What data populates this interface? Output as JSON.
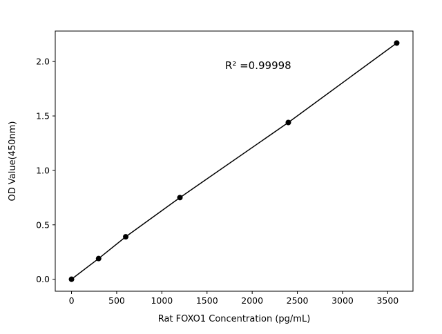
{
  "chart_data": {
    "type": "scatter",
    "x": [
      0,
      300,
      600,
      1200,
      2400,
      3600
    ],
    "y": [
      0.0,
      0.19,
      0.39,
      0.75,
      1.44,
      2.17
    ],
    "title": "",
    "xlabel": "Rat FOXO1 Concentration (pg/mL)",
    "ylabel": "OD Value(450nm)",
    "annotation": {
      "text": "R² =0.99998",
      "x": 1700,
      "y": 1.93
    },
    "xlim": [
      -180,
      3780
    ],
    "ylim": [
      -0.11,
      2.28
    ],
    "xticks": [
      0,
      500,
      1000,
      1500,
      2000,
      2500,
      3000,
      3500
    ],
    "xtick_labels": [
      "0",
      "500",
      "1000",
      "1500",
      "2000",
      "2500",
      "3000",
      "3500"
    ],
    "yticks": [
      0.0,
      0.5,
      1.0,
      1.5,
      2.0
    ],
    "ytick_labels": [
      "0.0",
      "0.5",
      "1.0",
      "1.5",
      "2.0"
    ],
    "grid": false,
    "legend": "none",
    "line_color": "#000000",
    "marker_color": "#000000",
    "axes_color": "#000000",
    "background_color": "#ffffff",
    "marker_size": 4,
    "line_width": 1.5
  }
}
